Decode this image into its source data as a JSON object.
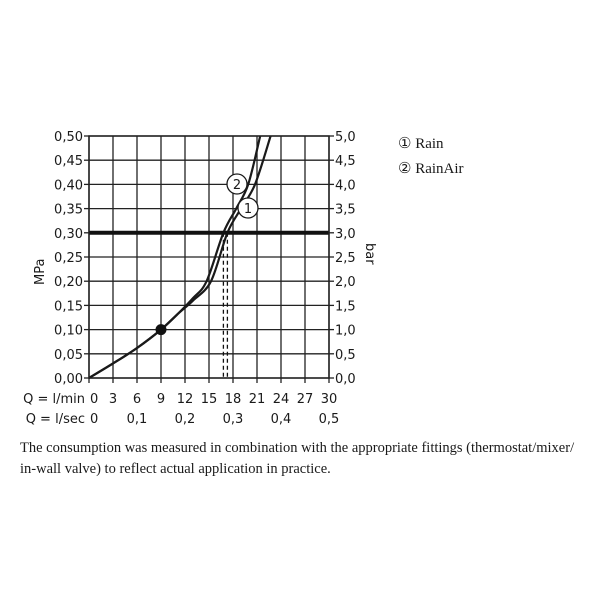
{
  "chart_data": {
    "type": "line",
    "xlabel_rows": [
      {
        "label": "Q = l/min",
        "ticks": [
          "0",
          "3",
          "6",
          "9",
          "12",
          "15",
          "18",
          "21",
          "24",
          "27",
          "30"
        ],
        "values": [
          0,
          3,
          6,
          9,
          12,
          15,
          18,
          21,
          24,
          27,
          30
        ]
      },
      {
        "label": "Q = l/sec",
        "ticks": [
          "0",
          "0,1",
          "0,2",
          "0,3",
          "0,4",
          "0,5"
        ],
        "values": [
          0,
          6,
          12,
          18,
          24,
          30
        ]
      }
    ],
    "ylabel_left": "MPa",
    "ylabel_right": "bar",
    "yticks_left": [
      "0,00",
      "0,05",
      "0,10",
      "0,15",
      "0,20",
      "0,25",
      "0,30",
      "0,35",
      "0,40",
      "0,45",
      "0,50"
    ],
    "yticks_right": [
      "0,0",
      "0,5",
      "1,0",
      "1,5",
      "2,0",
      "2,5",
      "3,0",
      "3,5",
      "4,0",
      "4,5",
      "5,0"
    ],
    "xlim": [
      0,
      30
    ],
    "ylim": [
      0,
      0.5
    ],
    "grid": true,
    "reference_line_y": 0.3,
    "marker_point": {
      "x": 9,
      "y": 0.1
    },
    "series": [
      {
        "name": "Rain",
        "marker": "1",
        "x": [
          0,
          3,
          6,
          9,
          11.2,
          13,
          15.25,
          17.3,
          19,
          20.75,
          22.7
        ],
        "y": [
          0,
          0.03,
          0.062,
          0.1,
          0.134,
          0.16,
          0.2,
          0.3,
          0.35,
          0.4,
          0.5
        ],
        "reference_flow": 17.3
      },
      {
        "name": "RainAir",
        "marker": "2",
        "x": [
          0,
          3,
          6,
          9,
          11.2,
          13,
          14.7,
          16.8,
          18.4,
          19.9,
          21.4
        ],
        "y": [
          0,
          0.03,
          0.062,
          0.1,
          0.134,
          0.165,
          0.2,
          0.3,
          0.35,
          0.4,
          0.5
        ],
        "reference_flow": 16.8
      }
    ]
  },
  "legend": [
    {
      "marker": "①",
      "label": "Rain"
    },
    {
      "marker": "②",
      "label": "RainAir"
    }
  ],
  "caption": "The consumption was measured in combination with the appropriate fittings (thermostat/mixer/ in-wall valve) to reflect actual application in practice."
}
